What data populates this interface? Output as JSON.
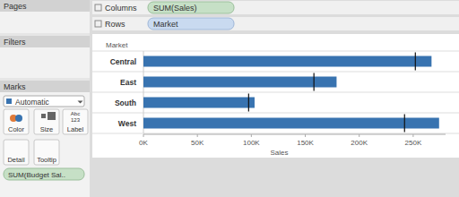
{
  "chart_data": {
    "type": "bar",
    "orientation": "horizontal",
    "ylabel": "Market",
    "xlabel": "Sales",
    "categories": [
      "Central",
      "East",
      "South",
      "West"
    ],
    "values": [
      267000,
      179000,
      103000,
      274000
    ],
    "targets": [
      252000,
      158000,
      97500,
      242000
    ],
    "color": "#3873b0",
    "xlim": [
      0,
      280000
    ],
    "xticks": [
      {
        "value": 0,
        "label": "0K"
      },
      {
        "value": 50000,
        "label": "50K"
      },
      {
        "value": 100000,
        "label": "100K"
      },
      {
        "value": 150000,
        "label": "150K"
      },
      {
        "value": 200000,
        "label": "200K"
      },
      {
        "value": 250000,
        "label": "250K"
      }
    ],
    "grid": false
  },
  "ui": {
    "pages": "Pages",
    "filters": "Filters",
    "marks": "Marks",
    "mark_type": "Automatic",
    "columns": "Columns",
    "columns_pill": "SUM(Sales)",
    "rows": "Rows",
    "rows_pill": "Market",
    "cards": [
      "Color",
      "Size",
      "Label",
      "Detail",
      "Tooltip"
    ],
    "label_icon": [
      "Abc",
      "123"
    ],
    "marks_pill": "SUM(Budget Sal.."
  }
}
